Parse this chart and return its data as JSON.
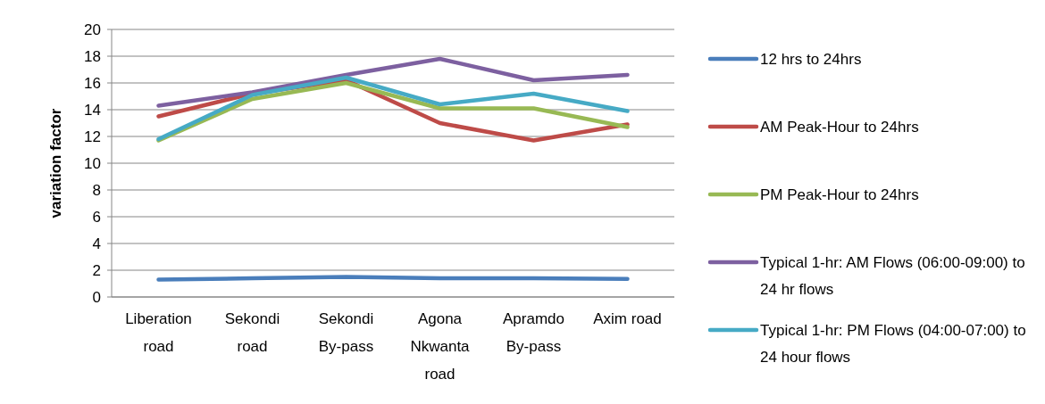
{
  "chart_data": {
    "type": "line",
    "ylabel": "variation factor",
    "categories": [
      "Liberation road",
      "Sekondi road",
      "Sekondi By-pass",
      "Agona Nkwanta road",
      "Apramdo By-pass",
      "Axim road"
    ],
    "series": [
      {
        "name": "12 hrs to 24hrs",
        "color": "#4a7ebb",
        "values": [
          1.3,
          1.4,
          1.5,
          1.4,
          1.4,
          1.35
        ]
      },
      {
        "name": "AM Peak-Hour to 24hrs",
        "color": "#be4b48",
        "values": [
          13.5,
          15.2,
          16.2,
          13.0,
          11.7,
          12.9
        ]
      },
      {
        "name": "PM Peak-Hour to 24hrs",
        "color": "#98b954",
        "values": [
          11.7,
          14.8,
          16.0,
          14.1,
          14.1,
          12.7
        ]
      },
      {
        "name": "Typical 1-hr: AM Flows (06:00-09:00) to 24 hr flows",
        "color": "#7d60a0",
        "values": [
          14.3,
          15.3,
          16.6,
          17.8,
          16.2,
          16.6
        ]
      },
      {
        "name": "Typical 1-hr: PM Flows (04:00-07:00) to 24 hour flows",
        "color": "#46aac5",
        "values": [
          11.8,
          15.1,
          16.4,
          14.4,
          15.2,
          13.9
        ]
      }
    ],
    "ylim": [
      0,
      20
    ],
    "yticks": [
      0,
      2,
      4,
      6,
      8,
      10,
      12,
      14,
      16,
      18,
      20
    ],
    "grid": "y",
    "legend": "right",
    "marker": "none",
    "line_style": "solid"
  }
}
